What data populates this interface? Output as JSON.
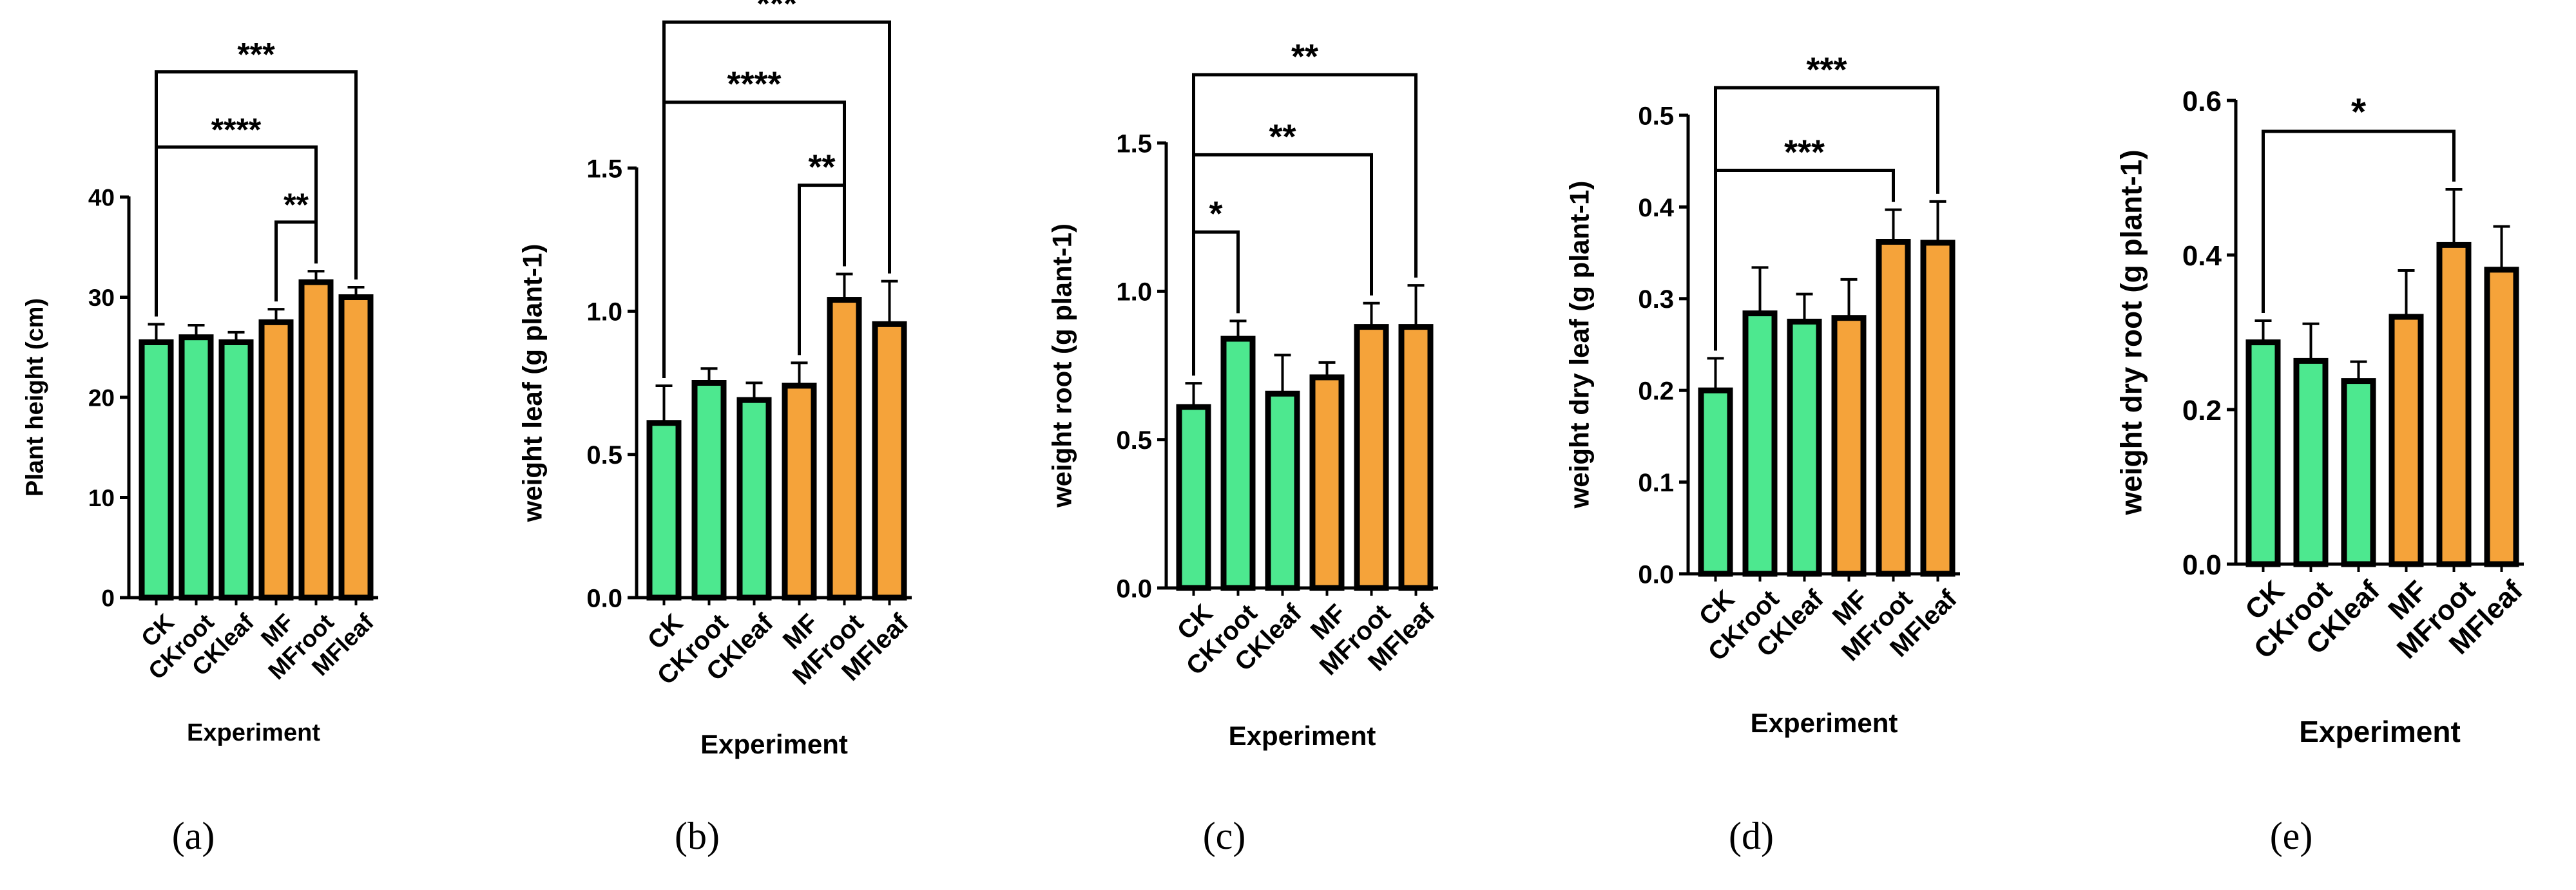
{
  "colors": {
    "control": "#4de88f",
    "treatment": "#f5a33a",
    "outline": "#000000"
  },
  "chart_data": [
    {
      "type": "bar",
      "panel_label": "(a)",
      "categories": [
        "CK",
        "CKroot",
        "CKleaf",
        "MF",
        "MFroot",
        "MFleaf"
      ],
      "values": [
        25.5,
        26,
        25.5,
        27.5,
        31.5,
        30
      ],
      "errors": [
        1.8,
        1.2,
        1.0,
        1.3,
        1.1,
        1.0
      ],
      "groups": [
        "control",
        "control",
        "control",
        "treatment",
        "treatment",
        "treatment"
      ],
      "ylabel": "Plant height (cm)",
      "xlabel": "Experiment",
      "ylim": [
        0,
        40
      ],
      "yticks": [
        0,
        10,
        20,
        30,
        40
      ],
      "ytick_labels": [
        "0",
        "10",
        "20",
        "30",
        "40"
      ],
      "brackets": [
        {
          "from": 4,
          "to": 5,
          "y": 37.5,
          "label": "**"
        },
        {
          "from": 1,
          "to": 5,
          "y": 45,
          "label": "****"
        },
        {
          "from": 1,
          "to": 6,
          "y": 52.5,
          "label": "***"
        }
      ]
    },
    {
      "type": "bar",
      "panel_label": "(b)",
      "categories": [
        "CK",
        "CKroot",
        "CKleaf",
        "MF",
        "MFroot",
        "MFleaf"
      ],
      "values": [
        0.61,
        0.75,
        0.69,
        0.74,
        1.04,
        0.955
      ],
      "errors": [
        0.13,
        0.05,
        0.06,
        0.08,
        0.09,
        0.15
      ],
      "groups": [
        "control",
        "control",
        "control",
        "treatment",
        "treatment",
        "treatment"
      ],
      "ylabel": "weight leaf (g plant-1)",
      "xlabel": "Experiment",
      "ylim": [
        0,
        1.5
      ],
      "yticks": [
        0,
        0.5,
        1.0,
        1.5
      ],
      "ytick_labels": [
        "0.0",
        "0.5",
        "1.0",
        "1.5"
      ],
      "brackets": [
        {
          "from": 4,
          "to": 5,
          "y": 1.44,
          "label": "**"
        },
        {
          "from": 1,
          "to": 5,
          "y": 1.73,
          "label": "****"
        },
        {
          "from": 1,
          "to": 6,
          "y": 2.01,
          "label": "***"
        }
      ]
    },
    {
      "type": "bar",
      "panel_label": "(c)",
      "categories": [
        "CK",
        "CKroot",
        "CKleaf",
        "MF",
        "MFroot",
        "MFleaf"
      ],
      "values": [
        0.61,
        0.84,
        0.655,
        0.71,
        0.88,
        0.88
      ],
      "errors": [
        0.08,
        0.06,
        0.13,
        0.05,
        0.08,
        0.14
      ],
      "groups": [
        "control",
        "control",
        "control",
        "treatment",
        "treatment",
        "treatment"
      ],
      "ylabel": "weight root (g plant-1)",
      "xlabel": "Experiment",
      "ylim": [
        0,
        1.5
      ],
      "yticks": [
        0,
        0.5,
        1.0,
        1.5
      ],
      "ytick_labels": [
        "0.0",
        "0.5",
        "1.0",
        "1.5"
      ],
      "brackets": [
        {
          "from": 1,
          "to": 2,
          "y": 1.2,
          "label": "*"
        },
        {
          "from": 1,
          "to": 5,
          "y": 1.46,
          "label": "**"
        },
        {
          "from": 1,
          "to": 6,
          "y": 1.73,
          "label": "**"
        }
      ]
    },
    {
      "type": "bar",
      "panel_label": "(d)",
      "categories": [
        "CK",
        "CKroot",
        "CKleaf",
        "MF",
        "MFroot",
        "MFleaf"
      ],
      "values": [
        0.2,
        0.284,
        0.275,
        0.279,
        0.362,
        0.361
      ],
      "errors": [
        0.035,
        0.05,
        0.03,
        0.042,
        0.035,
        0.045
      ],
      "groups": [
        "control",
        "control",
        "control",
        "treatment",
        "treatment",
        "treatment"
      ],
      "ylabel": "weight dry leaf (g plant-1)",
      "xlabel": "Experiment",
      "ylim": [
        0,
        0.5
      ],
      "yticks": [
        0,
        0.1,
        0.2,
        0.3,
        0.4,
        0.5
      ],
      "ytick_labels": [
        "0.0",
        "0.1",
        "0.2",
        "0.3",
        "0.4",
        "0.5"
      ],
      "brackets": [
        {
          "from": 1,
          "to": 5,
          "y": 0.44,
          "label": "***"
        },
        {
          "from": 1,
          "to": 6,
          "y": 0.53,
          "label": "***"
        }
      ]
    },
    {
      "type": "bar",
      "panel_label": "(e)",
      "categories": [
        "CK",
        "CKroot",
        "CKleaf",
        "MF",
        "MFroot",
        "MFleaf"
      ],
      "values": [
        0.287,
        0.263,
        0.237,
        0.32,
        0.413,
        0.381
      ],
      "errors": [
        0.028,
        0.048,
        0.025,
        0.06,
        0.072,
        0.056
      ],
      "groups": [
        "control",
        "control",
        "control",
        "treatment",
        "treatment",
        "treatment"
      ],
      "ylabel": "weight dry root (g plant-1)",
      "xlabel": "Experiment",
      "ylim": [
        0,
        0.6
      ],
      "yticks": [
        0,
        0.2,
        0.4,
        0.6
      ],
      "ytick_labels": [
        "0.0",
        "0.2",
        "0.4",
        "0.6"
      ],
      "brackets": [
        {
          "from": 1,
          "to": 5,
          "y": 0.56,
          "label": "*"
        }
      ]
    }
  ]
}
